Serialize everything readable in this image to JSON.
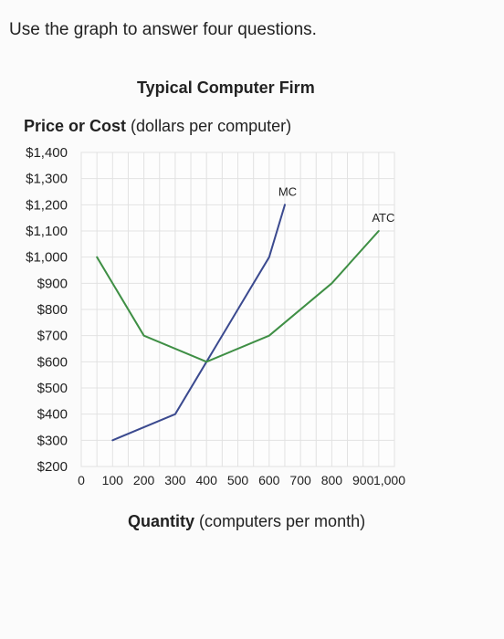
{
  "prompt": "Use the graph to answer four questions.",
  "chart_data": {
    "type": "line",
    "title": "Typical Computer Firm",
    "ylabel_bold": "Price or Cost",
    "ylabel_rest": " (dollars per computer)",
    "xlabel_bold": "Quantity",
    "xlabel_rest": " (computers per month)",
    "ylim": [
      200,
      1400
    ],
    "xlim": [
      0,
      1000
    ],
    "y_ticks": [
      200,
      300,
      400,
      500,
      600,
      700,
      800,
      900,
      1000,
      1100,
      1200,
      1300,
      1400
    ],
    "y_tick_labels": [
      "$200",
      "$300",
      "$400",
      "$500",
      "$600",
      "$700",
      "$800",
      "$900",
      "$1,000",
      "$1,100",
      "$1,200",
      "$1,300",
      "$1,400"
    ],
    "x_ticks": [
      0,
      100,
      200,
      300,
      400,
      500,
      600,
      700,
      800,
      900,
      1000
    ],
    "x_tick_labels": [
      "0",
      "100",
      "200",
      "300",
      "400",
      "500",
      "600",
      "700",
      "800",
      "900",
      "1,000"
    ],
    "grid": true,
    "series": [
      {
        "name": "MC",
        "color": "#3b4a8f",
        "points": [
          [
            100,
            300
          ],
          [
            300,
            400
          ],
          [
            400,
            600
          ],
          [
            600,
            1000
          ],
          [
            650,
            1200
          ]
        ]
      },
      {
        "name": "ATC",
        "color": "#3f8f45",
        "points": [
          [
            50,
            1000
          ],
          [
            200,
            700
          ],
          [
            400,
            600
          ],
          [
            600,
            700
          ],
          [
            800,
            900
          ],
          [
            950,
            1100
          ]
        ]
      }
    ]
  }
}
